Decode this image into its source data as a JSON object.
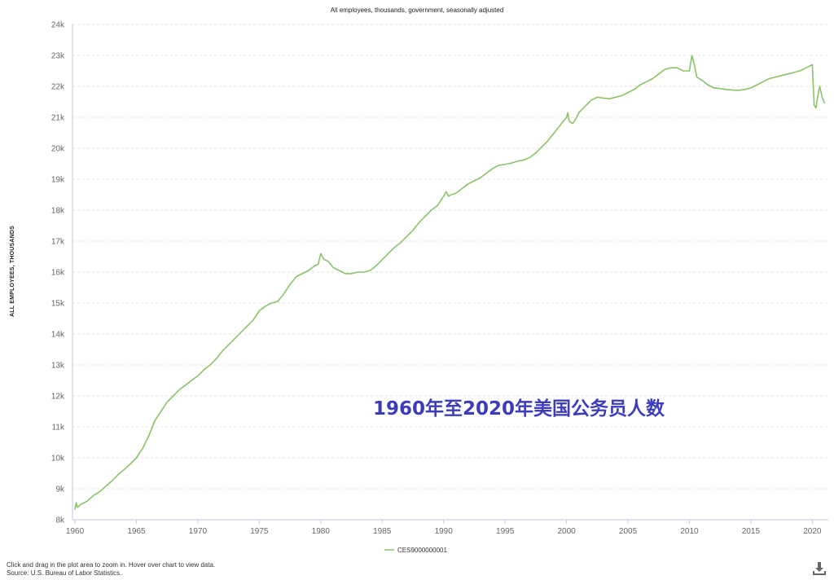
{
  "footer": {
    "instruction": "Click and drag in the plot area to zoom in. Hover over chart to view data.",
    "source": "Source: U.S. Bureau of Labor Statistics."
  },
  "overlay_caption": "1960年至2020年美国公务员人数",
  "icons": {
    "download": "download-icon"
  },
  "colors": {
    "series": "#8cc26a",
    "axis": "#c0c8e0",
    "overlay_text": "#3d3dbb"
  },
  "chart_data": {
    "type": "line",
    "title": "All employees, thousands, government, seasonally adjusted",
    "xlabel": "",
    "ylabel": "ALL EMPLOYEES, THOUSANDS",
    "ylim": [
      8000,
      24000
    ],
    "xlim": [
      1959.8,
      2021.3
    ],
    "x_ticks": [
      "1960",
      "1965",
      "1970",
      "1975",
      "1980",
      "1985",
      "1990",
      "1995",
      "2000",
      "2005",
      "2010",
      "2015",
      "2020"
    ],
    "y_ticks": [
      "8k",
      "9k",
      "10k",
      "11k",
      "12k",
      "13k",
      "14k",
      "15k",
      "16k",
      "17k",
      "18k",
      "19k",
      "20k",
      "21k",
      "22k",
      "23k",
      "24k"
    ],
    "grid": true,
    "legend_position": "bottom-center",
    "series": [
      {
        "name": "CES9000000001",
        "x": [
          1960.0,
          1960.1,
          1960.2,
          1960.3,
          1960.5,
          1961.0,
          1961.5,
          1962.0,
          1962.5,
          1963.0,
          1963.5,
          1964.0,
          1964.5,
          1965.0,
          1965.5,
          1966.0,
          1966.5,
          1967.0,
          1967.5,
          1968.0,
          1968.5,
          1969.0,
          1969.5,
          1970.0,
          1970.2,
          1970.5,
          1971.0,
          1971.5,
          1972.0,
          1972.5,
          1973.0,
          1973.5,
          1974.0,
          1974.5,
          1975.0,
          1975.5,
          1976.0,
          1976.5,
          1977.0,
          1977.5,
          1978.0,
          1978.5,
          1979.0,
          1979.5,
          1979.8,
          1980.0,
          1980.2,
          1980.3,
          1980.6,
          1981.0,
          1981.5,
          1982.0,
          1982.5,
          1983.0,
          1983.5,
          1984.0,
          1984.5,
          1985.0,
          1985.5,
          1986.0,
          1986.5,
          1987.0,
          1987.5,
          1988.0,
          1988.5,
          1989.0,
          1989.5,
          1990.0,
          1990.2,
          1990.4,
          1990.6,
          1990.8,
          1991.0,
          1991.5,
          1992.0,
          1992.5,
          1993.0,
          1993.5,
          1994.0,
          1994.5,
          1995.0,
          1995.5,
          1996.0,
          1996.5,
          1997.0,
          1997.5,
          1998.0,
          1998.5,
          1999.0,
          1999.5,
          2000.0,
          2000.1,
          2000.2,
          2000.3,
          2000.5,
          2000.7,
          2001.0,
          2001.5,
          2002.0,
          2002.5,
          2003.0,
          2003.5,
          2004.0,
          2004.5,
          2005.0,
          2005.5,
          2006.0,
          2006.5,
          2007.0,
          2007.5,
          2008.0,
          2008.5,
          2009.0,
          2009.5,
          2010.0,
          2010.2,
          2010.4,
          2010.6,
          2011.0,
          2011.5,
          2012.0,
          2012.5,
          2013.0,
          2013.5,
          2014.0,
          2014.5,
          2015.0,
          2015.5,
          2016.0,
          2016.5,
          2017.0,
          2017.5,
          2018.0,
          2018.5,
          2019.0,
          2019.5,
          2020.0,
          2020.15,
          2020.3,
          2020.45,
          2020.6,
          2020.8,
          2021.0
        ],
        "values": [
          8330,
          8550,
          8400,
          8430,
          8500,
          8600,
          8780,
          8900,
          9080,
          9250,
          9450,
          9620,
          9800,
          10000,
          10300,
          10700,
          11200,
          11500,
          11800,
          12000,
          12200,
          12350,
          12500,
          12650,
          12720,
          12850,
          13000,
          13200,
          13450,
          13650,
          13850,
          14050,
          14250,
          14450,
          14750,
          14900,
          15000,
          15050,
          15300,
          15600,
          15850,
          15950,
          16050,
          16200,
          16250,
          16600,
          16450,
          16400,
          16350,
          16150,
          16050,
          15950,
          15950,
          16000,
          16000,
          16050,
          16200,
          16400,
          16600,
          16800,
          16950,
          17150,
          17350,
          17600,
          17800,
          18000,
          18150,
          18450,
          18600,
          18450,
          18500,
          18520,
          18550,
          18700,
          18850,
          18950,
          19050,
          19200,
          19350,
          19450,
          19480,
          19520,
          19580,
          19620,
          19700,
          19850,
          20050,
          20250,
          20500,
          20750,
          21000,
          21150,
          20900,
          20850,
          20800,
          20900,
          21150,
          21350,
          21550,
          21650,
          21620,
          21600,
          21650,
          21700,
          21800,
          21900,
          22050,
          22150,
          22250,
          22400,
          22550,
          22600,
          22600,
          22500,
          22500,
          23000,
          22700,
          22300,
          22200,
          22050,
          21950,
          21930,
          21900,
          21880,
          21870,
          21900,
          21950,
          22050,
          22150,
          22250,
          22300,
          22350,
          22400,
          22450,
          22500,
          22600,
          22700,
          21400,
          21300,
          21700,
          22000,
          21650,
          21450
        ]
      }
    ]
  }
}
